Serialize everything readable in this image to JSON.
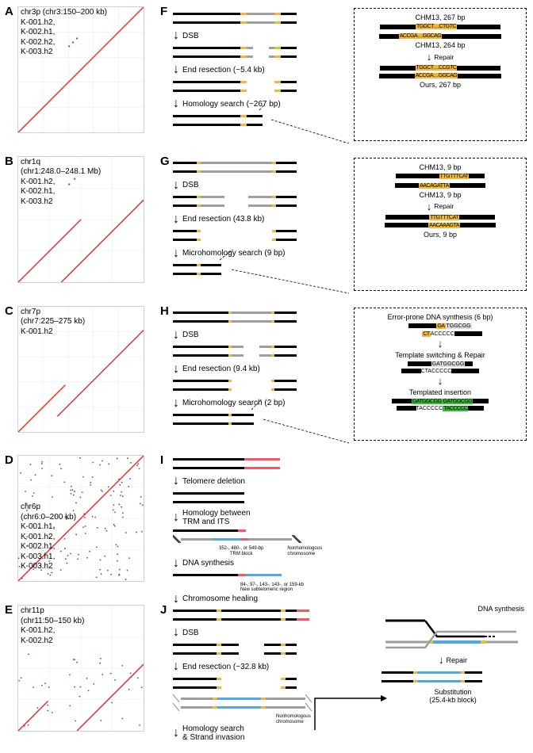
{
  "panels": {
    "A": {
      "label": "A",
      "title": "chr3p (chr3:150–200 kb)",
      "samples": [
        "K-001.h2,",
        "K-002.h1,",
        "K-002.h2,",
        "K-003.h2"
      ],
      "diag_offset": 0,
      "extra_dots": [
        [
          70,
          45,
          "#4070c0"
        ],
        [
          65,
          50,
          "#4070c0"
        ],
        [
          75,
          40,
          "#c04040"
        ]
      ],
      "caption_at_top": true
    },
    "B": {
      "label": "B",
      "title": "chr1q",
      "subtitle": "(chr1:248.0–248.1 Mb)",
      "samples": [
        "K-001.h2,",
        "K-002.h1,",
        "K-003.h2"
      ],
      "diag_break": true,
      "extra_dots": [
        [
          72,
          28,
          "#c04040"
        ],
        [
          65,
          35,
          "#c04040"
        ]
      ],
      "caption_at_top": true
    },
    "C": {
      "label": "C",
      "title": "chr7p",
      "subtitle": "(chr7:225–275 kb)",
      "samples": [
        "K-001.h2"
      ],
      "diag_break": true,
      "extra_dots": [],
      "caption_at_top": true
    },
    "D": {
      "label": "D",
      "title": "chr6p",
      "subtitle": "(chr6:0–200 kb)",
      "samples": [
        "K-001.h1,",
        "K-001.h2,",
        "K-002.h1,",
        "K-003.h1,",
        "K-003.h2"
      ],
      "scatter_dense": true,
      "caption_at_top": false
    },
    "E": {
      "label": "E",
      "title": "chr11p",
      "subtitle": "(chr11:50–150 kb)",
      "samples": [
        "K-001.h2,",
        "K-002.h2"
      ],
      "scatter_sparse": true,
      "caption_at_top": true
    }
  },
  "rightPanels": {
    "F": {
      "label": "F",
      "steps": [
        "DSB",
        "End resection (~5.4 kb)",
        "Homology search (~267 bp)"
      ],
      "detail": {
        "top_label": "CHM13, 267 bp",
        "top_seq_a": "TGGCT…CTGTC",
        "top_seq_b": "ACCGA…GGCAG",
        "mid_label": "CHM13, 264 bp",
        "action": "Repair",
        "bot_seq_a": "TGGCT…CCGTC",
        "bot_seq_b": "ACCGA…GGCAG",
        "bot_label": "Ours, 267 bp"
      }
    },
    "G": {
      "label": "G",
      "steps": [
        "DSB",
        "End resection (43.8 kb)",
        "Microhomology search (9 bp)"
      ],
      "detail": {
        "top_label": "CHM13, 9 bp",
        "top_seq_a": "TTGTTTCAT",
        "top_seq_b": "AACAGATTA",
        "mid_label": "CHM13, 9 bp",
        "action": "Repair",
        "bot_seq_a": "TTGTTTCAT",
        "bot_seq_b": "AACAAAGTA",
        "bot_label": "Ours, 9 bp"
      }
    },
    "H": {
      "label": "H",
      "steps": [
        "DSB",
        "End resection (9.4 kb)",
        "Microhomology search (2 bp)"
      ],
      "detail": {
        "title1": "Error-prone DNA synthesis (6 bp)",
        "seq1a": "GA",
        "seq1b": "TGGCGG",
        "seq1c": "",
        "seq1d": "CT",
        "seq1e": "ACCCCC",
        "title2": "Template switching & Repair",
        "seq2a": "GATGGCGG",
        "seq2b": "CTACCCCC",
        "title3": "Templated insertion",
        "seq3a": "GATGGCGG",
        "seq3b": "TACCCCC",
        "seq3g": "GATGGCGG"
      }
    },
    "I": {
      "label": "I",
      "steps": [
        "Telomere deletion",
        "Homology between\nTRM and ITS",
        "DNA synthesis",
        "Chromosome healing"
      ],
      "annot1": "352-, 480-, or 549-bp\nTRM block",
      "annot1b": "Nonhomologous\nchromosome",
      "annot2": "84-, 97-, 143-, 143-, or 159-kb\nNew subtelomeric region"
    },
    "J": {
      "label": "J",
      "steps": [
        "DSB",
        "End resection (~32.8 kb)",
        "Homology search\n& Strand invasion"
      ],
      "annot1": "Nonhomologous\nchromosome",
      "right_label1": "DNA synthesis",
      "right_label2": "Repair",
      "right_label3": "Substitution\n(25.4-kb block)"
    }
  },
  "colors": {
    "diag": "#e03030",
    "dot_blue": "#3050b0",
    "dot_red": "#c03030",
    "grid": "#e8e8e8"
  }
}
